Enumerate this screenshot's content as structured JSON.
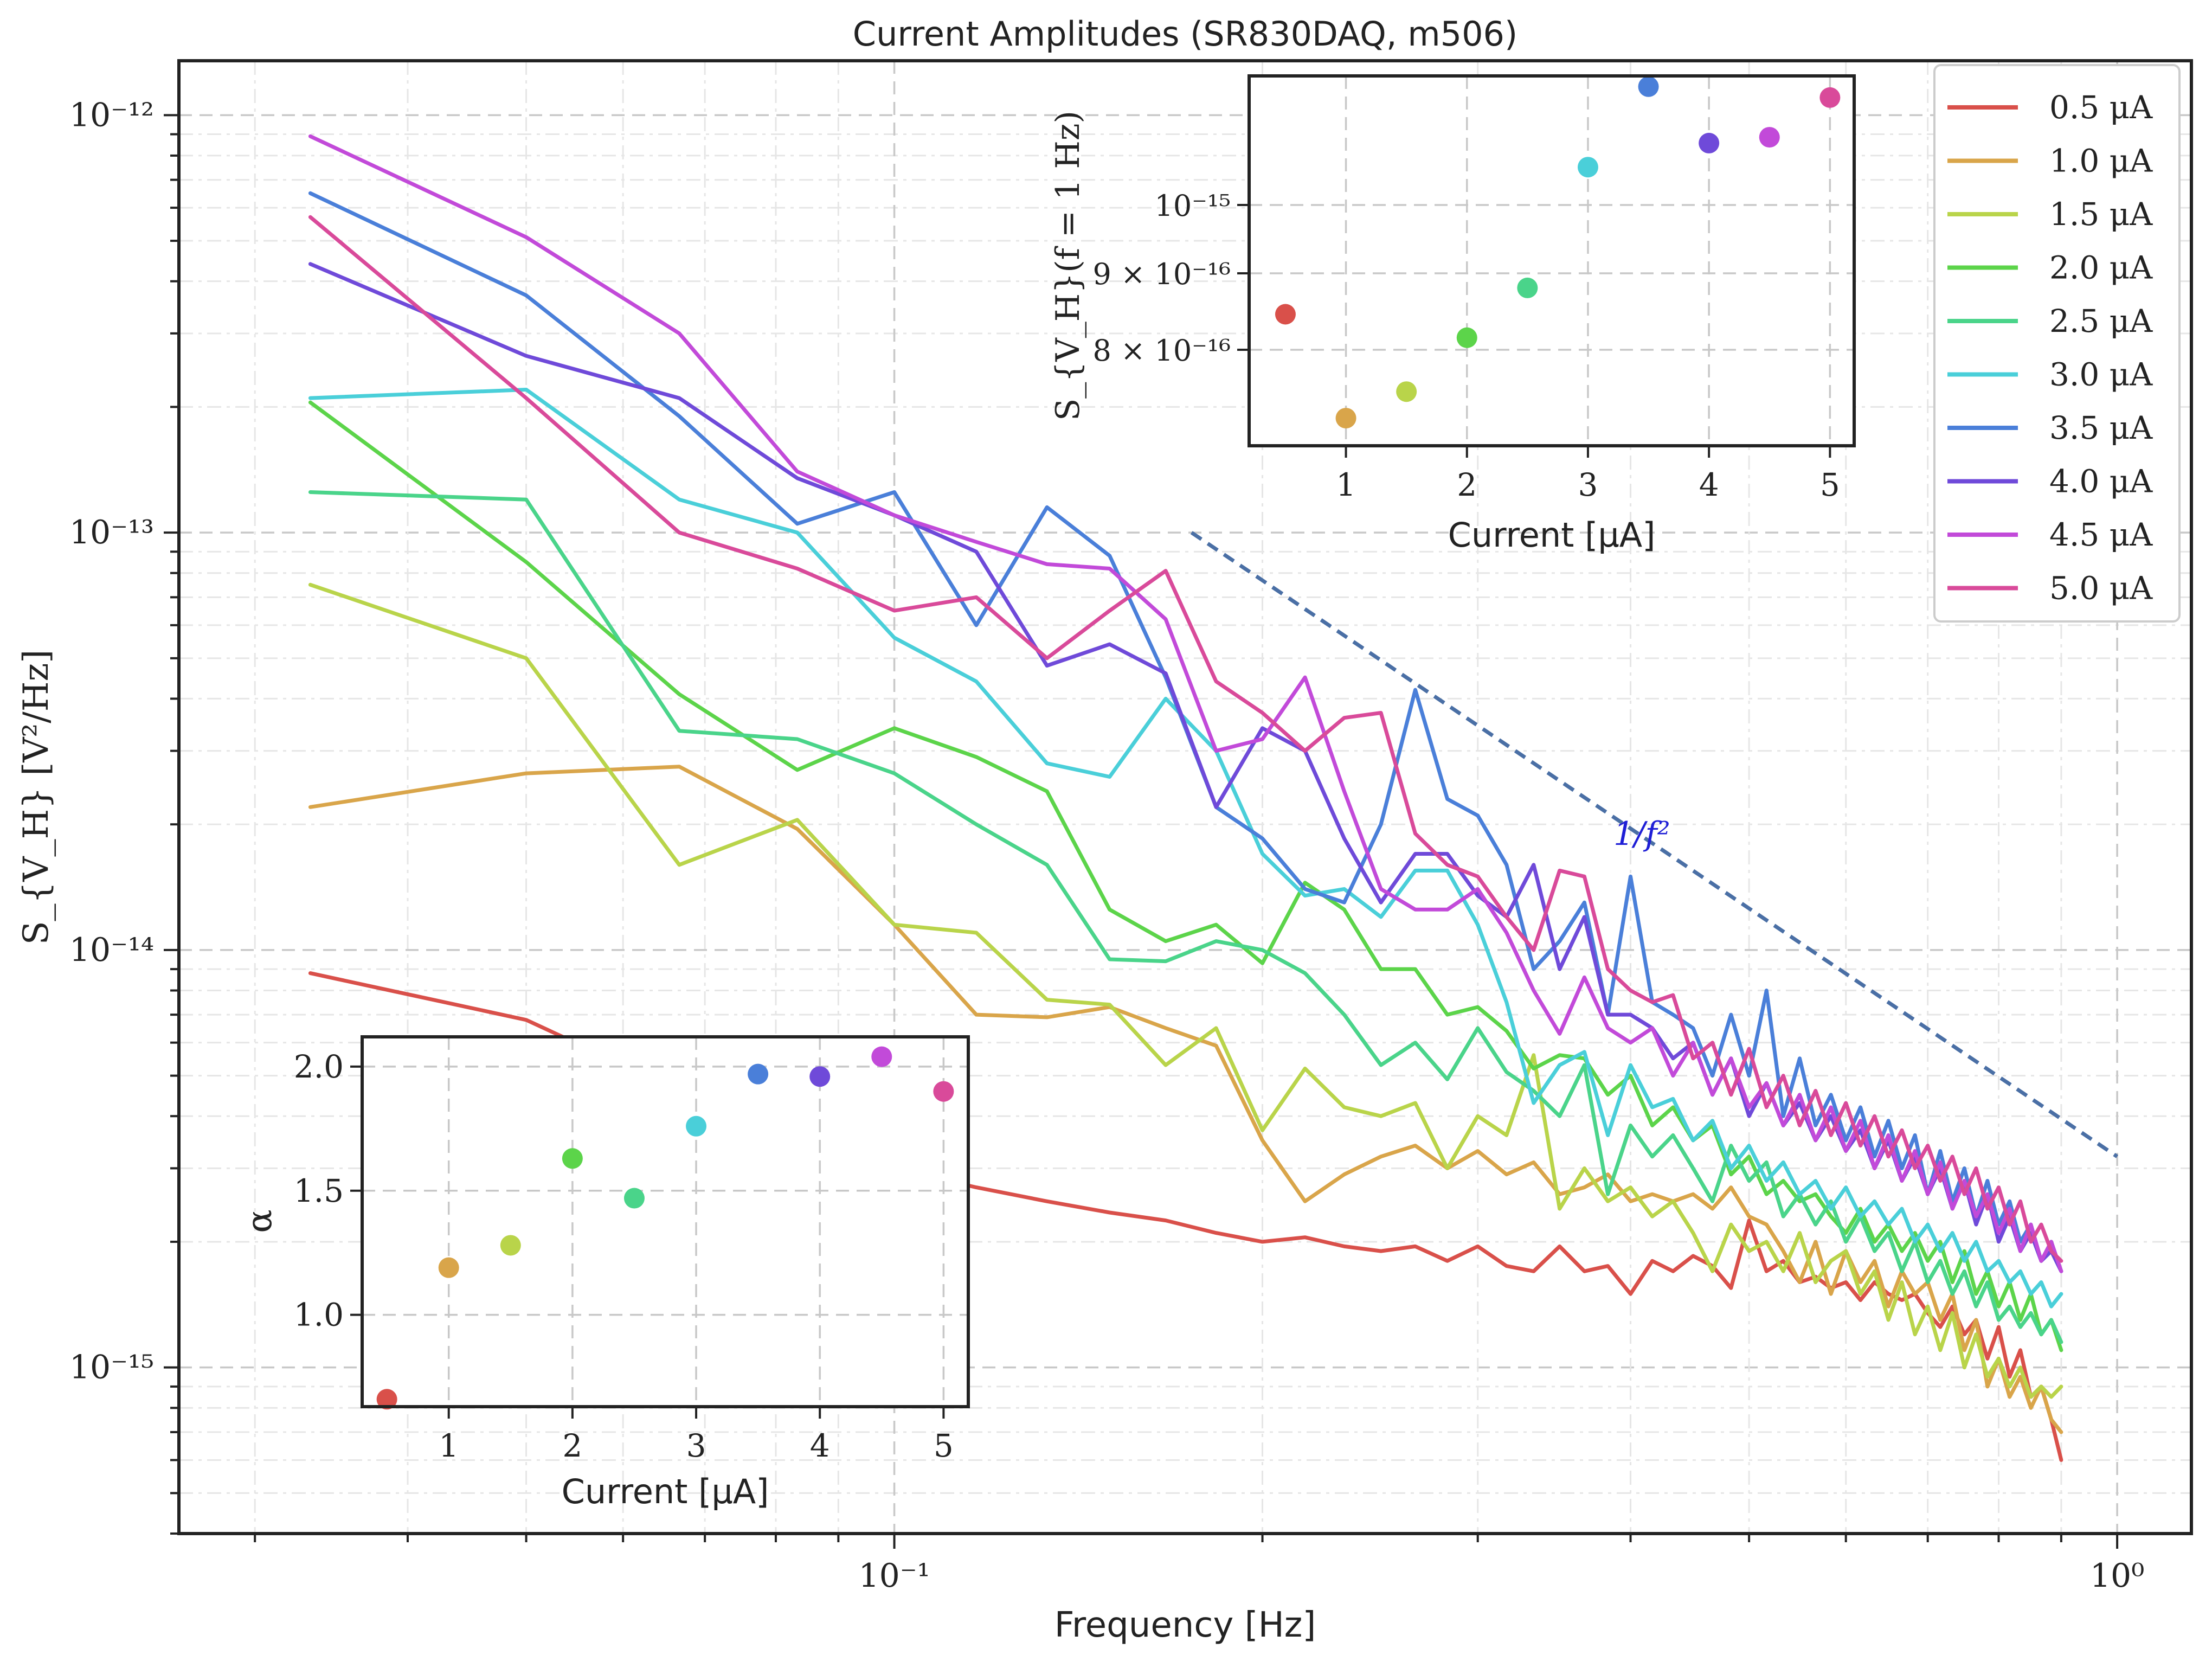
{
  "chart_data": [
    {
      "type": "line",
      "title": "Current Amplitudes (SR830DAQ, m506)",
      "xlabel": "Frequency [Hz]",
      "ylabel": "S_{V_H} [V²/Hz]",
      "xscale": "log",
      "yscale": "log",
      "xlim": [
        0.026,
        1.15
      ],
      "ylim": [
        4e-16,
        1.35e-12
      ],
      "xticks": [
        {
          "value": 0.1,
          "label": "10⁻¹"
        },
        {
          "value": 1.0,
          "label": "10⁰"
        }
      ],
      "yticks": [
        {
          "value": 1e-15,
          "label": "10⁻¹⁵"
        },
        {
          "value": 1e-14,
          "label": "10⁻¹⁴"
        },
        {
          "value": 1e-13,
          "label": "10⁻¹³"
        },
        {
          "value": 1e-12,
          "label": "10⁻¹²"
        }
      ],
      "grid": true,
      "legend_position": "top-right",
      "x": [
        0.0333,
        0.05,
        0.0667,
        0.0833,
        0.1,
        0.1167,
        0.1333,
        0.15,
        0.1667,
        0.1833,
        0.2,
        0.2167,
        0.2333,
        0.25,
        0.2667,
        0.2833,
        0.3,
        0.3167,
        0.3333,
        0.35,
        0.3667,
        0.3833,
        0.4,
        0.4167,
        0.4333,
        0.45,
        0.4667,
        0.4833,
        0.5,
        0.5167,
        0.5333,
        0.55,
        0.5667,
        0.5833,
        0.6,
        0.6167,
        0.6333,
        0.65,
        0.6667,
        0.6833,
        0.7,
        0.7167,
        0.7333,
        0.75,
        0.7667,
        0.7833,
        0.8,
        0.8167,
        0.8333,
        0.85,
        0.8667,
        0.8833,
        0.9
      ],
      "series": [
        {
          "name": "0.5 μA",
          "color": "#d9504a",
          "values": [
            8.8e-15,
            6.8e-15,
            4.6e-15,
            3.6e-15,
            3e-15,
            2.7e-15,
            2.5e-15,
            2.35e-15,
            2.25e-15,
            2.1e-15,
            2e-15,
            2.05e-15,
            1.95e-15,
            1.9e-15,
            1.95e-15,
            1.8e-15,
            1.95e-15,
            1.75e-15,
            1.7e-15,
            1.95e-15,
            1.7e-15,
            1.75e-15,
            1.5e-15,
            1.8e-15,
            1.7e-15,
            1.85e-15,
            1.75e-15,
            1.55e-15,
            2.25e-15,
            1.7e-15,
            1.8e-15,
            1.6e-15,
            1.65e-15,
            1.55e-15,
            1.6e-15,
            1.45e-15,
            1.6e-15,
            1.5e-15,
            1.45e-15,
            1.5e-15,
            1.35e-15,
            1.25e-15,
            1.4e-15,
            1.2e-15,
            1.3e-15,
            1.05e-15,
            1.25e-15,
            9.5e-16,
            1.1e-15,
            8.5e-16,
            9e-16,
            7.5e-16,
            6e-16
          ]
        },
        {
          "name": "1.0 μA",
          "color": "#d9a54a",
          "values": [
            2.2e-14,
            2.65e-14,
            2.75e-14,
            1.95e-14,
            1.15e-14,
            7e-15,
            6.9e-15,
            7.3e-15,
            6.5e-15,
            5.9e-15,
            3.5e-15,
            2.5e-15,
            2.9e-15,
            3.2e-15,
            3.4e-15,
            3e-15,
            3.3e-15,
            2.9e-15,
            3.1e-15,
            2.6e-15,
            2.7e-15,
            2.9e-15,
            2.5e-15,
            2.6e-15,
            2.5e-15,
            2.6e-15,
            2.4e-15,
            2.7e-15,
            2.3e-15,
            2.2e-15,
            1.9e-15,
            1.6e-15,
            2e-15,
            1.5e-15,
            1.9e-15,
            1.6e-15,
            1.8e-15,
            1.4e-15,
            1.7e-15,
            1.5e-15,
            1.6e-15,
            1.3e-15,
            1.5e-15,
            1.1e-15,
            1.3e-15,
            9e-16,
            1.05e-15,
            8.5e-16,
            9.5e-16,
            8e-16,
            9e-16,
            7.5e-16,
            7e-16
          ]
        },
        {
          "name": "1.5 μA",
          "color": "#b9d44a",
          "values": [
            7.5e-14,
            5e-14,
            1.6e-14,
            2.05e-14,
            1.15e-14,
            1.1e-14,
            7.6e-15,
            7.4e-15,
            5.3e-15,
            6.5e-15,
            3.7e-15,
            5.2e-15,
            4.2e-15,
            4e-15,
            4.3e-15,
            3e-15,
            4e-15,
            3.6e-15,
            5.6e-15,
            2.4e-15,
            3e-15,
            2.5e-15,
            2.7e-15,
            2.3e-15,
            2.5e-15,
            2.1e-15,
            1.7e-15,
            2.2e-15,
            1.9e-15,
            2e-15,
            1.7e-15,
            2.1e-15,
            1.6e-15,
            1.8e-15,
            1.9e-15,
            1.5e-15,
            1.7e-15,
            1.3e-15,
            1.6e-15,
            1.2e-15,
            1.4e-15,
            1.1e-15,
            1.35e-15,
            1e-15,
            1.2e-15,
            9.5e-16,
            1.05e-15,
            9e-16,
            1e-15,
            8.5e-16,
            9e-16,
            8.5e-16,
            9e-16
          ]
        },
        {
          "name": "2.0 μA",
          "color": "#5cd44a",
          "values": [
            2.05e-13,
            8.5e-14,
            4.1e-14,
            2.7e-14,
            3.4e-14,
            2.9e-14,
            2.4e-14,
            1.25e-14,
            1.05e-14,
            1.15e-14,
            9.3e-15,
            1.45e-14,
            1.25e-14,
            9e-15,
            9e-15,
            7e-15,
            7.3e-15,
            6.4e-15,
            5.2e-15,
            5.6e-15,
            5.5e-15,
            4.5e-15,
            5e-15,
            3.8e-15,
            4.2e-15,
            3.5e-15,
            3.8e-15,
            2.9e-15,
            3.2e-15,
            2.6e-15,
            2.8e-15,
            2.5e-15,
            2.6e-15,
            2.3e-15,
            2.1e-15,
            2.4e-15,
            2e-15,
            2.2e-15,
            1.9e-15,
            2.1e-15,
            1.8e-15,
            2e-15,
            1.6e-15,
            1.9e-15,
            1.5e-15,
            1.7e-15,
            1.4e-15,
            1.6e-15,
            1.3e-15,
            1.5e-15,
            1.2e-15,
            1.3e-15,
            1.1e-15
          ]
        },
        {
          "name": "2.5 μA",
          "color": "#4ad48a",
          "values": [
            1.25e-13,
            1.2e-13,
            3.35e-14,
            3.2e-14,
            2.65e-14,
            2e-14,
            1.6e-14,
            9.5e-15,
            9.4e-15,
            1.05e-14,
            1e-14,
            8.8e-15,
            7e-15,
            5.3e-15,
            6e-15,
            4.9e-15,
            6.5e-15,
            5.1e-15,
            4.6e-15,
            4e-15,
            5.3e-15,
            2.6e-15,
            3.8e-15,
            3.2e-15,
            3.6e-15,
            3e-15,
            2.5e-15,
            3.4e-15,
            2.8e-15,
            3.1e-15,
            2.3e-15,
            2.6e-15,
            2.2e-15,
            2.5e-15,
            2e-15,
            2.3e-15,
            1.9e-15,
            2.1e-15,
            1.7e-15,
            2e-15,
            1.6e-15,
            1.8e-15,
            1.5e-15,
            1.7e-15,
            1.4e-15,
            1.6e-15,
            1.3e-15,
            1.4e-15,
            1.25e-15,
            1.35e-15,
            1.2e-15,
            1.3e-15,
            1.15e-15
          ]
        },
        {
          "name": "3.0 μA",
          "color": "#4acfd9",
          "values": [
            2.1e-13,
            2.2e-13,
            1.2e-13,
            1e-13,
            5.6e-14,
            4.4e-14,
            2.8e-14,
            2.6e-14,
            4e-14,
            3e-14,
            1.7e-14,
            1.35e-14,
            1.4e-14,
            1.2e-14,
            1.55e-14,
            1.55e-14,
            1.15e-14,
            7.5e-15,
            4.3e-15,
            5.3e-15,
            5.7e-15,
            3.6e-15,
            5.3e-15,
            4.2e-15,
            4.4e-15,
            3.5e-15,
            3.9e-15,
            3e-15,
            3.4e-15,
            2.8e-15,
            3.1e-15,
            2.6e-15,
            2.8e-15,
            2.4e-15,
            2.7e-15,
            2.3e-15,
            2.5e-15,
            2.2e-15,
            2.4e-15,
            2e-15,
            2.2e-15,
            1.9e-15,
            2.1e-15,
            1.8e-15,
            2e-15,
            1.7e-15,
            1.8e-15,
            1.6e-15,
            1.7e-15,
            1.5e-15,
            1.6e-15,
            1.4e-15,
            1.5e-15
          ]
        },
        {
          "name": "3.5 μA",
          "color": "#4a7fd9",
          "values": [
            6.5e-13,
            3.7e-13,
            1.9e-13,
            1.05e-13,
            1.25e-13,
            6e-14,
            1.15e-13,
            8.8e-14,
            4.5e-14,
            2.2e-14,
            1.85e-14,
            1.4e-14,
            1.3e-14,
            2e-14,
            4.2e-14,
            2.3e-14,
            2.1e-14,
            1.6e-14,
            9e-15,
            1.05e-14,
            1.3e-14,
            7e-15,
            1.5e-14,
            7.5e-15,
            7e-15,
            6.5e-15,
            5e-15,
            7e-15,
            5e-15,
            8e-15,
            4e-15,
            5.5e-15,
            3.8e-15,
            4.5e-15,
            3.5e-15,
            4.2e-15,
            3.2e-15,
            3.9e-15,
            3e-15,
            3.6e-15,
            2.6e-15,
            3.3e-15,
            2.5e-15,
            3e-15,
            2.3e-15,
            2.8e-15,
            2.2e-15,
            2.5e-15,
            2e-15,
            2.2e-15,
            1.8e-15,
            2e-15,
            1.7e-15
          ]
        },
        {
          "name": "4.0 μA",
          "color": "#6f4ad9",
          "values": [
            4.4e-13,
            2.65e-13,
            2.1e-13,
            1.35e-13,
            1.1e-13,
            9e-14,
            4.8e-14,
            5.4e-14,
            4.6e-14,
            2.2e-14,
            3.4e-14,
            3e-14,
            1.85e-14,
            1.3e-14,
            1.7e-14,
            1.7e-14,
            1.35e-14,
            1.2e-14,
            1.6e-14,
            9e-15,
            1.2e-14,
            7e-15,
            7e-15,
            6.5e-15,
            5.5e-15,
            6e-15,
            4.5e-15,
            5.5e-15,
            4e-15,
            4.8e-15,
            3.8e-15,
            4.3e-15,
            3.5e-15,
            4e-15,
            3.3e-15,
            3.7e-15,
            3e-15,
            3.5e-15,
            2.8e-15,
            3.2e-15,
            2.6e-15,
            3e-15,
            2.4e-15,
            2.8e-15,
            2.2e-15,
            2.6e-15,
            2e-15,
            2.3e-15,
            1.9e-15,
            2.1e-15,
            1.8e-15,
            1.9e-15,
            1.7e-15
          ]
        },
        {
          "name": "4.5 μA",
          "color": "#c24ad9",
          "values": [
            8.9e-13,
            5.1e-13,
            3e-13,
            1.4e-13,
            1.1e-13,
            9.5e-14,
            8.4e-14,
            8.2e-14,
            6.2e-14,
            3e-14,
            3.2e-14,
            4.5e-14,
            2.4e-14,
            1.4e-14,
            1.25e-14,
            1.25e-14,
            1.4e-14,
            1.1e-14,
            8e-15,
            6.3e-15,
            8.6e-15,
            6.5e-15,
            6e-15,
            6.5e-15,
            5e-15,
            6e-15,
            4.5e-15,
            5.5e-15,
            4.2e-15,
            4.8e-15,
            3.8e-15,
            4.5e-15,
            3.5e-15,
            4.2e-15,
            3.3e-15,
            3.9e-15,
            3e-15,
            3.6e-15,
            2.8e-15,
            3.3e-15,
            2.6e-15,
            3.1e-15,
            2.4e-15,
            2.8e-15,
            2.3e-15,
            2.6e-15,
            2.1e-15,
            2.4e-15,
            1.9e-15,
            2.2e-15,
            1.8e-15,
            2e-15,
            1.7e-15
          ]
        },
        {
          "name": "5.0 μA",
          "color": "#d94a9a",
          "values": [
            5.7e-13,
            2.1e-13,
            1e-13,
            8.2e-14,
            6.5e-14,
            7e-14,
            5e-14,
            6.5e-14,
            8.1e-14,
            4.4e-14,
            3.7e-14,
            3e-14,
            3.6e-14,
            3.7e-14,
            1.9e-14,
            1.6e-14,
            1.5e-14,
            1.2e-14,
            1e-14,
            1.55e-14,
            1.5e-14,
            9e-15,
            8e-15,
            7.5e-15,
            7.8e-15,
            5.5e-15,
            6e-15,
            4.5e-15,
            5.8e-15,
            4.2e-15,
            5e-15,
            3.8e-15,
            4.6e-15,
            3.6e-15,
            4.3e-15,
            3.4e-15,
            4e-15,
            3.2e-15,
            3.7e-15,
            3e-15,
            3.4e-15,
            2.8e-15,
            3.2e-15,
            2.6e-15,
            3e-15,
            2.4e-15,
            2.7e-15,
            2.2e-15,
            2.5e-15,
            2e-15,
            2.2e-15,
            1.9e-15,
            1.8e-15
          ]
        }
      ],
      "reference_line": {
        "label": "1/f²",
        "x": [
          0.175,
          1.0
        ],
        "y": [
          1e-13,
          3.2e-15
        ],
        "color": "#4a6fa5",
        "style": "dashed"
      }
    },
    {
      "type": "scatter",
      "title": "",
      "xlabel": "Current [μA]",
      "ylabel": "S_{V_H}(f = 1 Hz)",
      "yscale": "log",
      "xlim": [
        0.2,
        5.2
      ],
      "ylim": [
        6.9e-16,
        1.22e-15
      ],
      "xticks": [
        1,
        2,
        3,
        4,
        5
      ],
      "yticks": [
        {
          "value": 8e-16,
          "label": "8 × 10⁻¹⁶"
        },
        {
          "value": 9e-16,
          "label": "9 × 10⁻¹⁶"
        },
        {
          "value": 1e-15,
          "label": "10⁻¹⁵"
        }
      ],
      "grid": true,
      "points": [
        {
          "x": 0.5,
          "y": 8.45e-16,
          "color": "#d9504a"
        },
        {
          "x": 1.0,
          "y": 7.2e-16,
          "color": "#d9a54a"
        },
        {
          "x": 1.5,
          "y": 7.5e-16,
          "color": "#b9d44a"
        },
        {
          "x": 2.0,
          "y": 8.15e-16,
          "color": "#5cd44a"
        },
        {
          "x": 2.5,
          "y": 8.8e-16,
          "color": "#4ad48a"
        },
        {
          "x": 3.0,
          "y": 1.06e-15,
          "color": "#4acfd9"
        },
        {
          "x": 3.5,
          "y": 1.2e-15,
          "color": "#4a7fd9"
        },
        {
          "x": 4.0,
          "y": 1.1e-15,
          "color": "#6f4ad9"
        },
        {
          "x": 4.5,
          "y": 1.11e-15,
          "color": "#c24ad9"
        },
        {
          "x": 5.0,
          "y": 1.18e-15,
          "color": "#d94a9a"
        }
      ]
    },
    {
      "type": "scatter",
      "title": "",
      "xlabel": "Current [μA]",
      "ylabel": "α",
      "xlim": [
        0.3,
        5.2
      ],
      "ylim": [
        0.63,
        2.12
      ],
      "xticks": [
        1,
        2,
        3,
        4,
        5
      ],
      "yticks": [
        {
          "value": 1.0,
          "label": "1.0"
        },
        {
          "value": 1.5,
          "label": "1.5"
        },
        {
          "value": 2.0,
          "label": "2.0"
        }
      ],
      "grid": true,
      "points": [
        {
          "x": 0.5,
          "y": 0.66,
          "color": "#d9504a"
        },
        {
          "x": 1.0,
          "y": 1.19,
          "color": "#d9a54a"
        },
        {
          "x": 1.5,
          "y": 1.28,
          "color": "#b9d44a"
        },
        {
          "x": 2.0,
          "y": 1.63,
          "color": "#5cd44a"
        },
        {
          "x": 2.5,
          "y": 1.47,
          "color": "#4ad48a"
        },
        {
          "x": 3.0,
          "y": 1.76,
          "color": "#4acfd9"
        },
        {
          "x": 3.5,
          "y": 1.97,
          "color": "#4a7fd9"
        },
        {
          "x": 4.0,
          "y": 1.96,
          "color": "#6f4ad9"
        },
        {
          "x": 4.5,
          "y": 2.04,
          "color": "#c24ad9"
        },
        {
          "x": 5.0,
          "y": 1.9,
          "color": "#d94a9a"
        }
      ]
    }
  ]
}
